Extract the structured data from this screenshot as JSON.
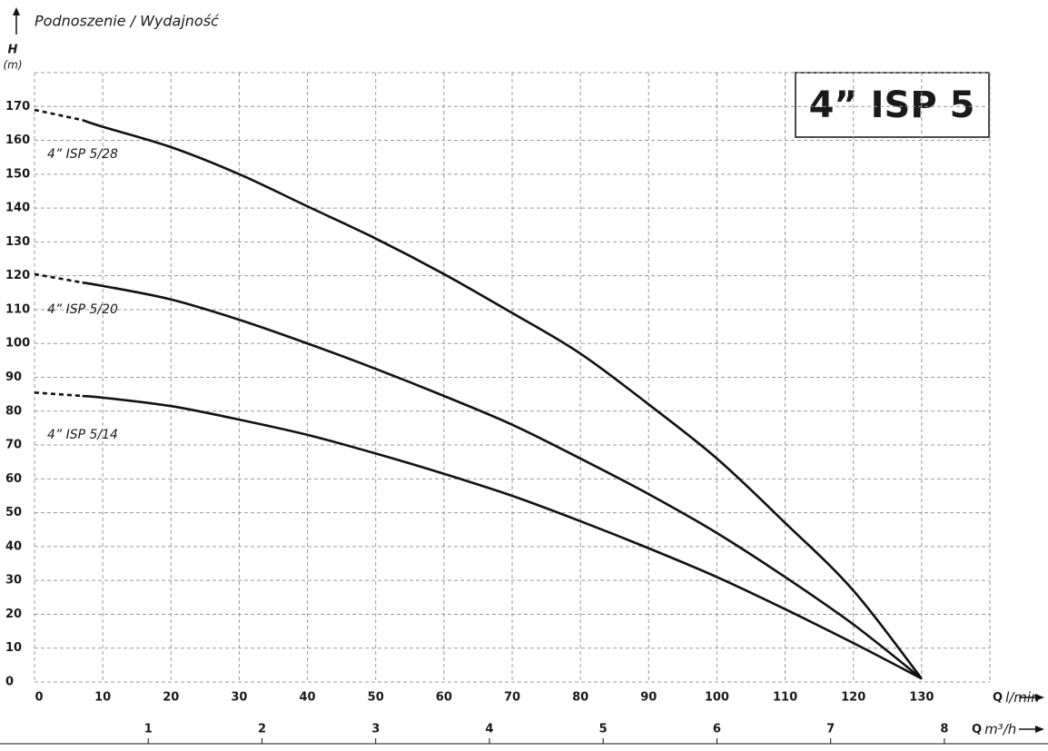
{
  "chart_data": {
    "type": "line",
    "title": "4” ISP 5",
    "subtitle": "Podnoszenie / Wydajność",
    "y_label": "H",
    "y_unit": "(m)",
    "x_label": {
      "symbol": "Q",
      "unit": "l/min"
    },
    "x2_label": {
      "symbol": "Q",
      "unit": "m³/h"
    },
    "xlim": [
      0,
      140
    ],
    "xticks": [
      0,
      10,
      20,
      30,
      40,
      50,
      60,
      70,
      80,
      90,
      100,
      110,
      120,
      130
    ],
    "x2lim": [
      0,
      8.4
    ],
    "x2ticks": [
      1,
      2,
      3,
      4,
      5,
      6,
      7,
      8
    ],
    "ylim": [
      0,
      180
    ],
    "yticks": [
      0,
      10,
      20,
      30,
      40,
      50,
      60,
      70,
      80,
      90,
      100,
      110,
      120,
      130,
      140,
      150,
      160,
      170
    ],
    "grid": true,
    "dashed_segments": 1,
    "series": [
      {
        "name": "4” ISP 5/28",
        "color": "#111111",
        "x": [
          0,
          7,
          10,
          20,
          30,
          40,
          50,
          60,
          70,
          80,
          90,
          100,
          110,
          120,
          130
        ],
        "values": [
          169,
          166,
          164,
          158,
          150,
          140.5,
          131,
          120.5,
          109,
          97,
          82,
          66,
          47,
          27,
          1
        ]
      },
      {
        "name": "4” ISP 5/20",
        "color": "#111111",
        "x": [
          0,
          7,
          10,
          20,
          30,
          40,
          50,
          60,
          70,
          80,
          90,
          100,
          110,
          120,
          130
        ],
        "values": [
          120.5,
          118,
          117,
          113,
          107,
          100,
          92.5,
          84.5,
          76,
          66,
          55.5,
          44,
          31,
          17,
          1
        ]
      },
      {
        "name": "4” ISP 5/14",
        "color": "#111111",
        "x": [
          0,
          7,
          10,
          20,
          30,
          40,
          50,
          60,
          70,
          80,
          90,
          100,
          110,
          120,
          130
        ],
        "values": [
          85.5,
          84.5,
          84,
          81.5,
          77.5,
          73,
          67.5,
          61.5,
          55,
          47.5,
          39.5,
          31,
          21.5,
          11.5,
          1
        ]
      }
    ]
  }
}
